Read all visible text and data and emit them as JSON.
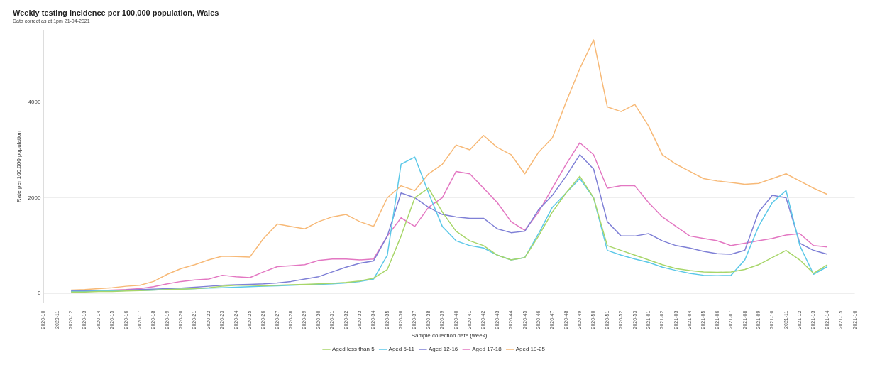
{
  "chart_data": {
    "type": "line",
    "title": "Weekly testing incidence per 100,000 population, Wales",
    "subtitle": "Data correct as at 1pm 21-04-2021",
    "xlabel": "Sample collection date (week)",
    "ylabel": "Rate per 100,000 population",
    "categories": [
      "2020-10",
      "2020-11",
      "2020-12",
      "2020-13",
      "2020-14",
      "2020-15",
      "2020-16",
      "2020-17",
      "2020-18",
      "2020-19",
      "2020-20",
      "2020-21",
      "2020-22",
      "2020-23",
      "2020-24",
      "2020-25",
      "2020-26",
      "2020-27",
      "2020-28",
      "2020-29",
      "2020-30",
      "2020-31",
      "2020-32",
      "2020-33",
      "2020-34",
      "2020-35",
      "2020-36",
      "2020-37",
      "2020-38",
      "2020-39",
      "2020-40",
      "2020-41",
      "2020-42",
      "2020-43",
      "2020-44",
      "2020-45",
      "2020-46",
      "2020-47",
      "2020-48",
      "2020-49",
      "2020-50",
      "2020-51",
      "2020-52",
      "2020-53",
      "2021-01",
      "2021-02",
      "2021-03",
      "2021-04",
      "2021-05",
      "2021-06",
      "2021-07",
      "2021-08",
      "2021-09",
      "2021-10",
      "2021-11",
      "2021-12",
      "2021-13",
      "2021-14",
      "2021-15",
      "2021-16"
    ],
    "series": [
      {
        "name": "Aged less than 5",
        "color": "#a8d66a",
        "values": [
          null,
          null,
          30,
          30,
          40,
          40,
          50,
          60,
          70,
          80,
          90,
          100,
          120,
          150,
          170,
          170,
          160,
          170,
          180,
          190,
          200,
          210,
          230,
          260,
          320,
          500,
          1200,
          2000,
          2200,
          1700,
          1300,
          1100,
          1000,
          800,
          700,
          750,
          1200,
          1700,
          2100,
          2450,
          2000,
          1000,
          900,
          800,
          700,
          600,
          520,
          480,
          450,
          440,
          450,
          500,
          600,
          750,
          900,
          700,
          420,
          600,
          null,
          null
        ]
      },
      {
        "name": "Aged 5-11",
        "color": "#5cc8e8",
        "values": [
          null,
          null,
          40,
          40,
          50,
          50,
          60,
          60,
          70,
          80,
          90,
          100,
          110,
          120,
          130,
          140,
          150,
          160,
          170,
          180,
          190,
          200,
          220,
          250,
          300,
          800,
          2700,
          2850,
          2100,
          1400,
          1100,
          1000,
          950,
          800,
          700,
          750,
          1250,
          1800,
          2100,
          2400,
          2000,
          900,
          800,
          720,
          650,
          550,
          480,
          420,
          380,
          370,
          380,
          700,
          1400,
          1900,
          2150,
          1000,
          400,
          560,
          null,
          null
        ]
      },
      {
        "name": "Aged 12-16",
        "color": "#7f80d6",
        "values": [
          null,
          null,
          50,
          50,
          60,
          60,
          70,
          80,
          90,
          100,
          110,
          130,
          150,
          170,
          180,
          190,
          200,
          220,
          250,
          300,
          350,
          450,
          550,
          630,
          680,
          1200,
          2100,
          2000,
          1800,
          1650,
          1600,
          1570,
          1570,
          1350,
          1270,
          1300,
          1750,
          2050,
          2450,
          2900,
          2600,
          1500,
          1200,
          1200,
          1250,
          1100,
          1000,
          950,
          880,
          830,
          820,
          900,
          1700,
          2050,
          2000,
          1050,
          900,
          820,
          null,
          null
        ]
      },
      {
        "name": "Aged 17-18",
        "color": "#e377c2",
        "values": [
          null,
          null,
          40,
          50,
          60,
          70,
          80,
          100,
          140,
          200,
          250,
          280,
          300,
          380,
          350,
          330,
          450,
          560,
          580,
          600,
          690,
          720,
          720,
          700,
          720,
          1200,
          1580,
          1400,
          1800,
          2000,
          2550,
          2500,
          2200,
          1900,
          1500,
          1320,
          1700,
          2200,
          2700,
          3150,
          2900,
          2200,
          2250,
          2250,
          1900,
          1600,
          1400,
          1200,
          1150,
          1100,
          1000,
          1050,
          1100,
          1150,
          1220,
          1250,
          1000,
          970,
          null,
          null
        ]
      },
      {
        "name": "Aged 19-25",
        "color": "#f7b977",
        "values": [
          null,
          null,
          70,
          80,
          100,
          120,
          150,
          170,
          250,
          400,
          520,
          600,
          700,
          780,
          770,
          760,
          1150,
          1450,
          1400,
          1350,
          1500,
          1600,
          1650,
          1500,
          1400,
          2000,
          2250,
          2150,
          2500,
          2700,
          3100,
          3000,
          3300,
          3050,
          2900,
          2500,
          2950,
          3250,
          4000,
          4700,
          5300,
          3900,
          3800,
          3950,
          3500,
          2900,
          2700,
          2550,
          2400,
          2350,
          2320,
          2280,
          2300,
          2400,
          2500,
          2350,
          2200,
          2070,
          null,
          null
        ]
      }
    ],
    "ylim": [
      -200,
      5500
    ],
    "yticks": [
      0,
      2000,
      4000
    ],
    "grid": "y",
    "legend": "bottom",
    "marker": "none",
    "line_style": "solid"
  }
}
